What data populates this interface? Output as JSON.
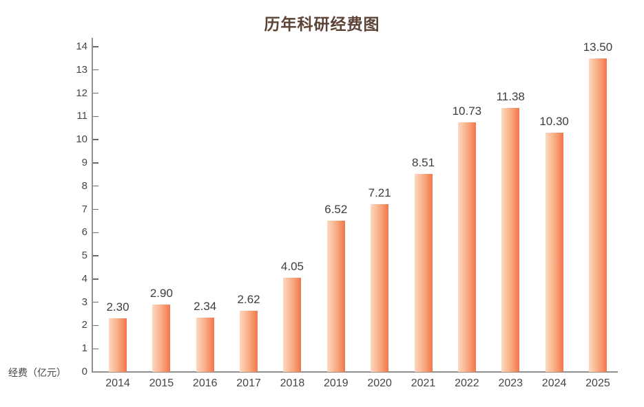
{
  "chart_data": {
    "type": "bar",
    "title": "历年科研经费图",
    "ylabel": "经费（亿元）",
    "xlabel": "",
    "categories": [
      "2014",
      "2015",
      "2016",
      "2017",
      "2018",
      "2019",
      "2020",
      "2021",
      "2022",
      "2023",
      "2024",
      "2025"
    ],
    "values": [
      2.3,
      2.9,
      2.34,
      2.62,
      4.05,
      6.52,
      7.21,
      8.51,
      10.73,
      11.38,
      10.3,
      13.5
    ],
    "value_labels": [
      "2.30",
      "2.90",
      "2.34",
      "2.62",
      "4.05",
      "6.52",
      "7.21",
      "8.51",
      "10.73",
      "11.38",
      "10.30",
      "13.50"
    ],
    "ylim": [
      0,
      14
    ],
    "ytick_step": 1,
    "grid": false,
    "legend": false,
    "colors": {
      "title": "#5c4336",
      "axis_line": "#8f8f8f",
      "tick_mark": "#6a6a6a",
      "tick_text": "#454545",
      "value_text": "#3d3d3d",
      "bar_gradient_left": "#fcd9c1",
      "bar_gradient_mid": "#f9b28a",
      "bar_gradient_right": "#f3764c"
    }
  }
}
